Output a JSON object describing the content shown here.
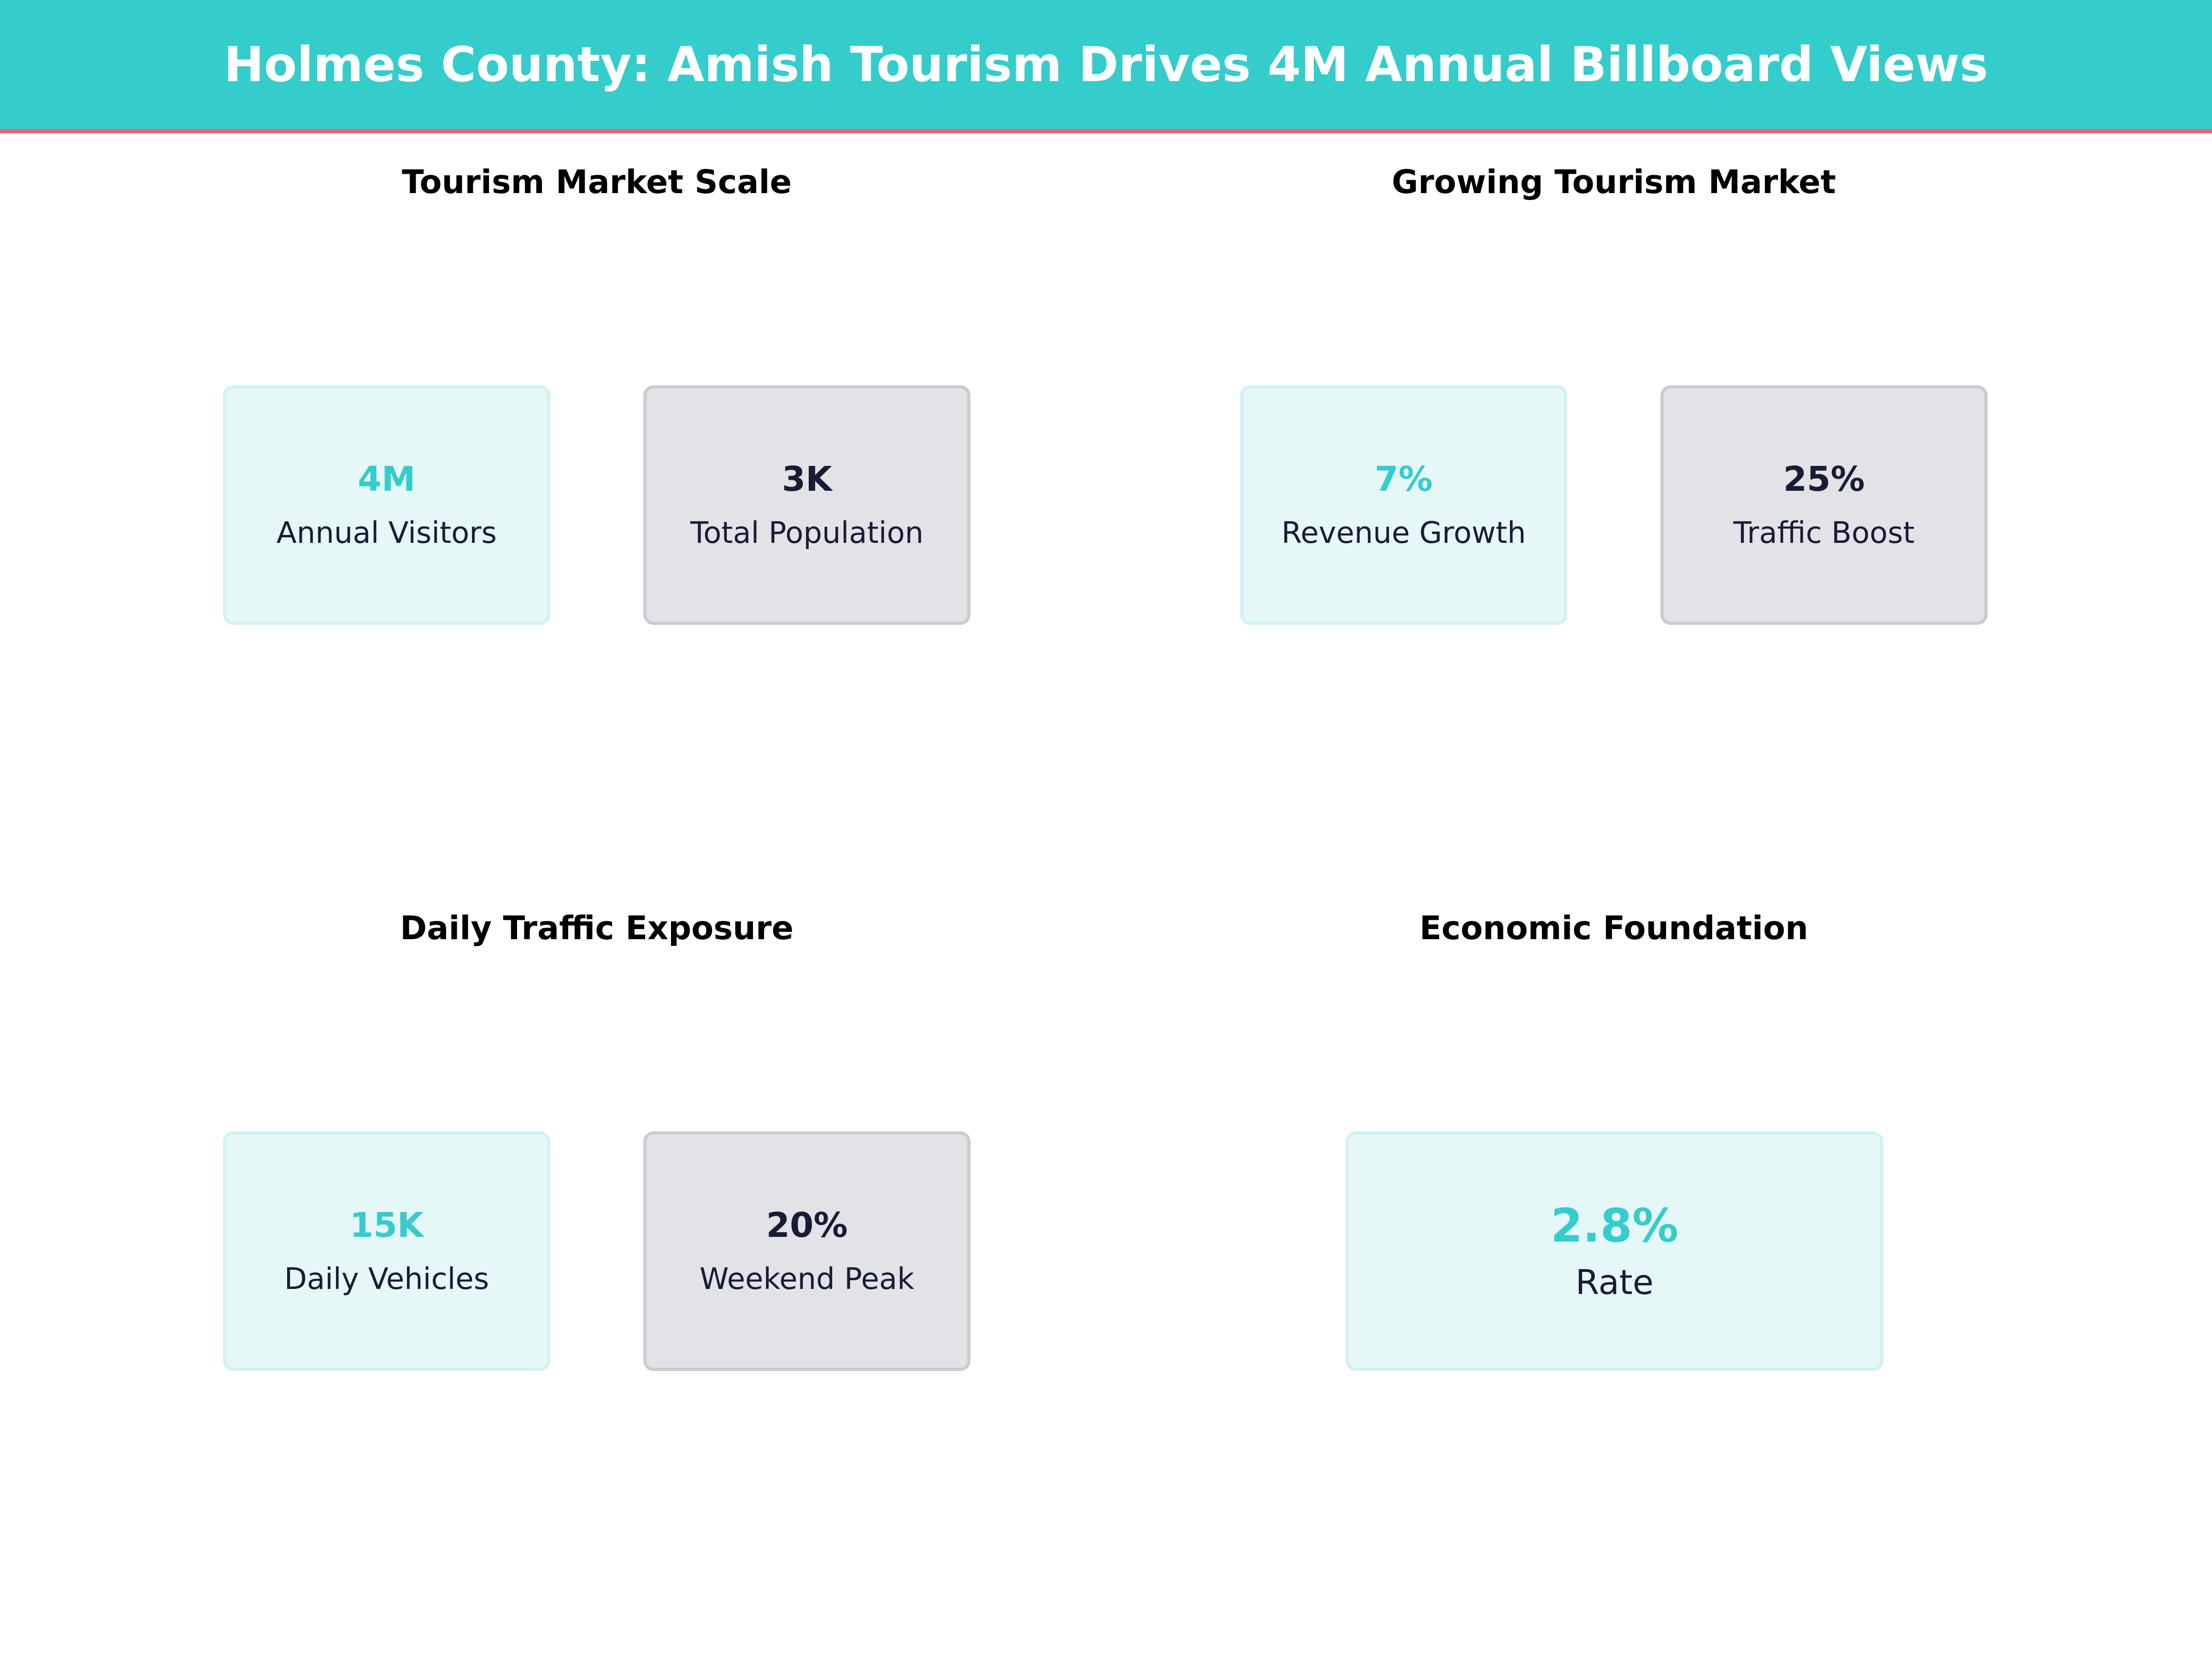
{
  "header": {
    "title": "Holmes County: Amish Tourism Drives 4M Annual Billboard Views"
  },
  "colors": {
    "accent": "#35cccc",
    "underline": "#f06277",
    "dark_text": "#1a1b35",
    "teal_card": "#e5f7f7",
    "grey_card": "#e2e3e7"
  },
  "sections": [
    {
      "title": "Tourism Market Scale",
      "cards": [
        {
          "value": "4M",
          "label": "Annual Visitors",
          "style": "teal"
        },
        {
          "value": "3K",
          "label": "Total Population",
          "style": "grey"
        }
      ]
    },
    {
      "title": "Growing Tourism Market",
      "cards": [
        {
          "value": "7%",
          "label": "Revenue Growth",
          "style": "teal"
        },
        {
          "value": "25%",
          "label": "Traffic Boost",
          "style": "grey"
        }
      ]
    },
    {
      "title": "Daily Traffic Exposure",
      "cards": [
        {
          "value": "15K",
          "label": "Daily Vehicles",
          "style": "teal"
        },
        {
          "value": "20%",
          "label": "Weekend Peak",
          "style": "grey"
        }
      ]
    },
    {
      "title": "Economic Foundation",
      "cards": [
        {
          "value": "2.8%",
          "label": "Rate",
          "style": "teal"
        }
      ]
    }
  ]
}
